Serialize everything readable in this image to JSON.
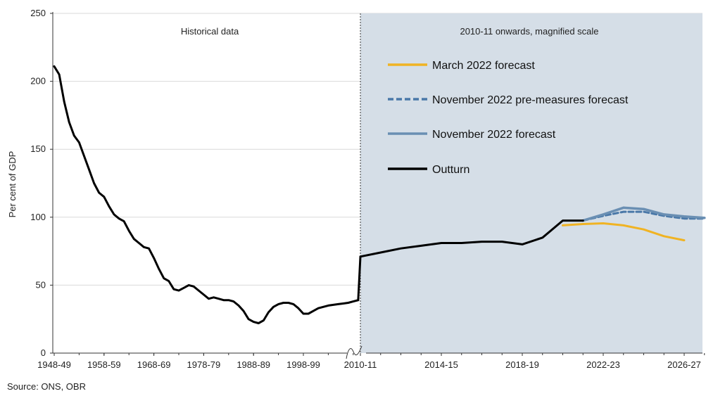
{
  "chart_data": {
    "type": "line",
    "ylabel": "Per cent of GDP",
    "ylim": [
      0,
      250
    ],
    "yticks": [
      0,
      50,
      100,
      150,
      200,
      250
    ],
    "grid": "horizontal",
    "legend_position": "top-right",
    "colors": {
      "march_2022": "#f0b323",
      "nov_2022_pre": "#4a78a8",
      "nov_2022": "#6a8fb3",
      "outturn": "#000000",
      "magnified_background": "#d5dee7",
      "grid": "#d9d9d9"
    },
    "panels": [
      {
        "label": "Historical data",
        "xticks": [
          "1948-49",
          "1958-59",
          "1968-69",
          "1978-79",
          "1988-89",
          "1998-99"
        ],
        "series": [
          {
            "key": "outturn",
            "name": "Outturn",
            "x": [
              1948,
              1949,
              1950,
              1951,
              1952,
              1953,
              1954,
              1955,
              1956,
              1957,
              1958,
              1959,
              1960,
              1961,
              1962,
              1963,
              1964,
              1965,
              1966,
              1967,
              1968,
              1969,
              1970,
              1971,
              1972,
              1973,
              1974,
              1975,
              1976,
              1977,
              1978,
              1979,
              1980,
              1981,
              1982,
              1983,
              1984,
              1985,
              1986,
              1987,
              1988,
              1989,
              1990,
              1991,
              1992,
              1993,
              1994,
              1995,
              1996,
              1997,
              1998,
              1999,
              2000,
              2001,
              2002,
              2003,
              2004,
              2005,
              2006,
              2007,
              2008,
              2009
            ],
            "y": [
              211,
              205,
              185,
              170,
              160,
              155,
              145,
              135,
              125,
              118,
              115,
              108,
              102,
              99,
              97,
              90,
              84,
              81,
              78,
              77,
              70,
              62,
              55,
              53,
              47,
              46,
              48,
              50,
              49,
              46,
              43,
              40,
              41,
              40,
              39,
              39,
              38,
              35,
              31,
              25,
              23,
              22,
              24,
              30,
              34,
              36,
              37,
              37,
              36,
              33,
              29,
              29,
              31,
              33,
              34,
              35,
              35.5,
              36,
              36.5,
              37,
              38,
              39
            ]
          }
        ]
      },
      {
        "label": "2010-11 onwards, magnified scale",
        "xticks": [
          "2010-11",
          "2014-15",
          "2018-19",
          "2022-23",
          "2026-27"
        ],
        "series": [
          {
            "key": "outturn",
            "name": "Outturn",
            "x": [
              2010,
              2011,
              2012,
              2013,
              2014,
              2015,
              2016,
              2017,
              2018,
              2019,
              2020,
              2021
            ],
            "y": [
              71,
              74,
              77,
              79,
              81,
              81,
              82,
              82,
              80,
              85,
              97.5,
              97.5
            ]
          },
          {
            "key": "march_2022",
            "name": "March 2022 forecast",
            "x": [
              2020,
              2021,
              2022,
              2023,
              2024,
              2025,
              2026
            ],
            "y": [
              94,
              95,
              95.5,
              94,
              91,
              86,
              83
            ]
          },
          {
            "key": "nov_2022_pre",
            "name": "November 2022 pre-measures forecast",
            "x": [
              2021,
              2022,
              2023,
              2024,
              2025,
              2026,
              2027
            ],
            "y": [
              97.5,
              101,
              104,
              104,
              101,
              99,
              99
            ]
          },
          {
            "key": "nov_2022",
            "name": "November 2022 forecast",
            "x": [
              2021,
              2022,
              2023,
              2024,
              2025,
              2026,
              2027
            ],
            "y": [
              97.5,
              102,
              107,
              106,
              102,
              100.5,
              99.5
            ]
          }
        ]
      }
    ],
    "legend": [
      {
        "key": "march_2022",
        "label": "March 2022 forecast",
        "style": "solid"
      },
      {
        "key": "nov_2022_pre",
        "label": "November 2022 pre-measures forecast",
        "style": "dashed"
      },
      {
        "key": "nov_2022",
        "label": "November 2022 forecast",
        "style": "solid"
      },
      {
        "key": "outturn",
        "label": "Outturn",
        "style": "solid"
      }
    ]
  },
  "source": "Source: ONS, OBR"
}
